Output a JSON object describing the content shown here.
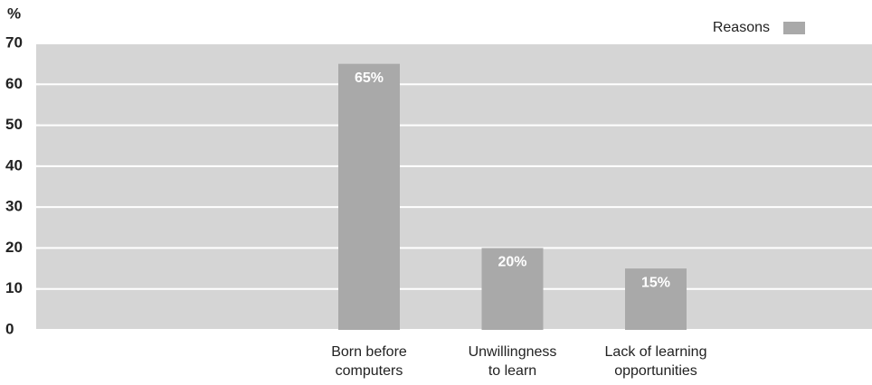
{
  "chart_data": {
    "type": "bar",
    "y_label": "%",
    "categories": [
      "Born before\ncomputers",
      "Unwillingness\nto learn",
      "Lack of learning\nopportunities"
    ],
    "series": [
      {
        "name": "Reasons",
        "color": "#a9a9a9",
        "values": [
          65,
          20,
          15
        ],
        "value_labels": [
          "65%",
          "20%",
          "15%"
        ]
      }
    ],
    "ylim": [
      0,
      70
    ],
    "yticks": [
      0,
      10,
      20,
      30,
      40,
      50,
      60,
      70
    ],
    "grid": true,
    "legend": "top-right",
    "plot_color": "#d5d5d5"
  }
}
